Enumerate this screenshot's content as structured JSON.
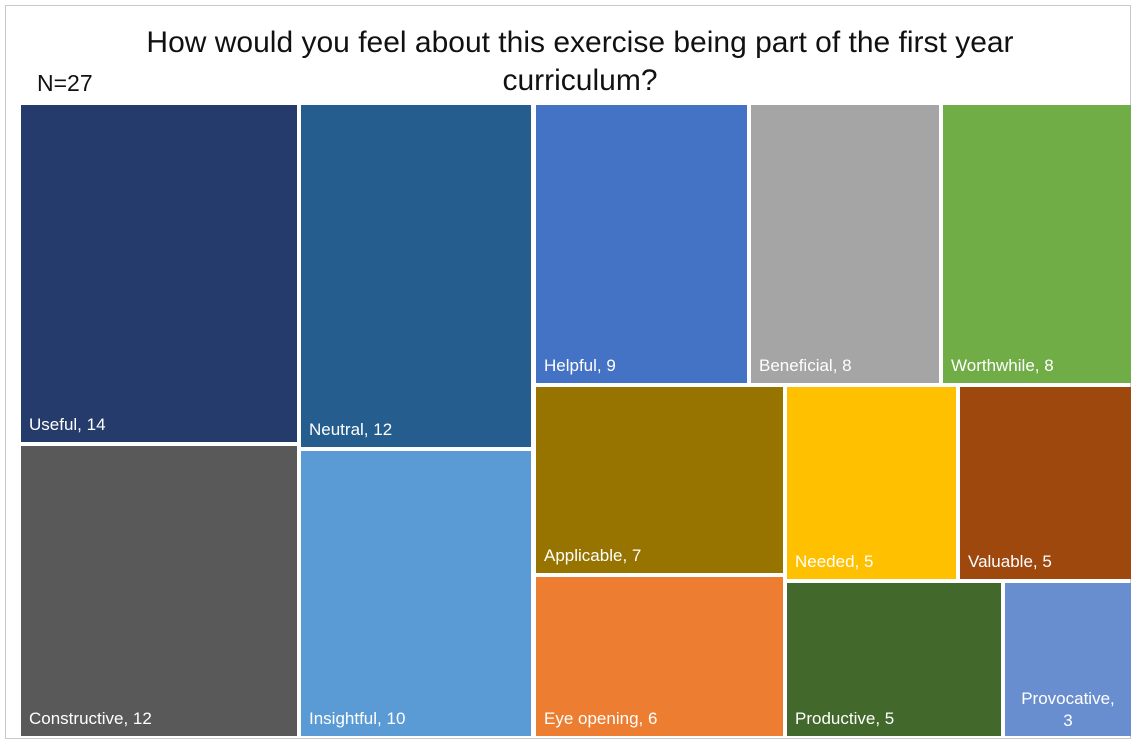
{
  "chart_data": {
    "type": "treemap",
    "title": "How would you feel about this exercise being part of the first year curriculum?",
    "title_lines": [
      "How would you feel about this exercise being part of the first year",
      "curriculum?"
    ],
    "n_label": "N=27",
    "items": [
      {
        "label": "Useful",
        "value": 14,
        "color": "#243b6b"
      },
      {
        "label": "Constructive",
        "value": 12,
        "color": "#595959"
      },
      {
        "label": "Neutral",
        "value": 12,
        "color": "#255d8e"
      },
      {
        "label": "Insightful",
        "value": 10,
        "color": "#5b9bd5"
      },
      {
        "label": "Helpful",
        "value": 9,
        "color": "#4472c4"
      },
      {
        "label": "Beneficial",
        "value": 8,
        "color": "#a5a5a5"
      },
      {
        "label": "Worthwhile",
        "value": 8,
        "color": "#70ad47"
      },
      {
        "label": "Applicable",
        "value": 7,
        "color": "#977300"
      },
      {
        "label": "Needed",
        "value": 5,
        "color": "#ffc000"
      },
      {
        "label": "Valuable",
        "value": 5,
        "color": "#9e480e"
      },
      {
        "label": "Eye opening",
        "value": 6,
        "color": "#ed7d31"
      },
      {
        "label": "Productive",
        "value": 5,
        "color": "#43682b"
      },
      {
        "label": "Provocative",
        "value": 3,
        "color": "#698ed0"
      }
    ]
  }
}
